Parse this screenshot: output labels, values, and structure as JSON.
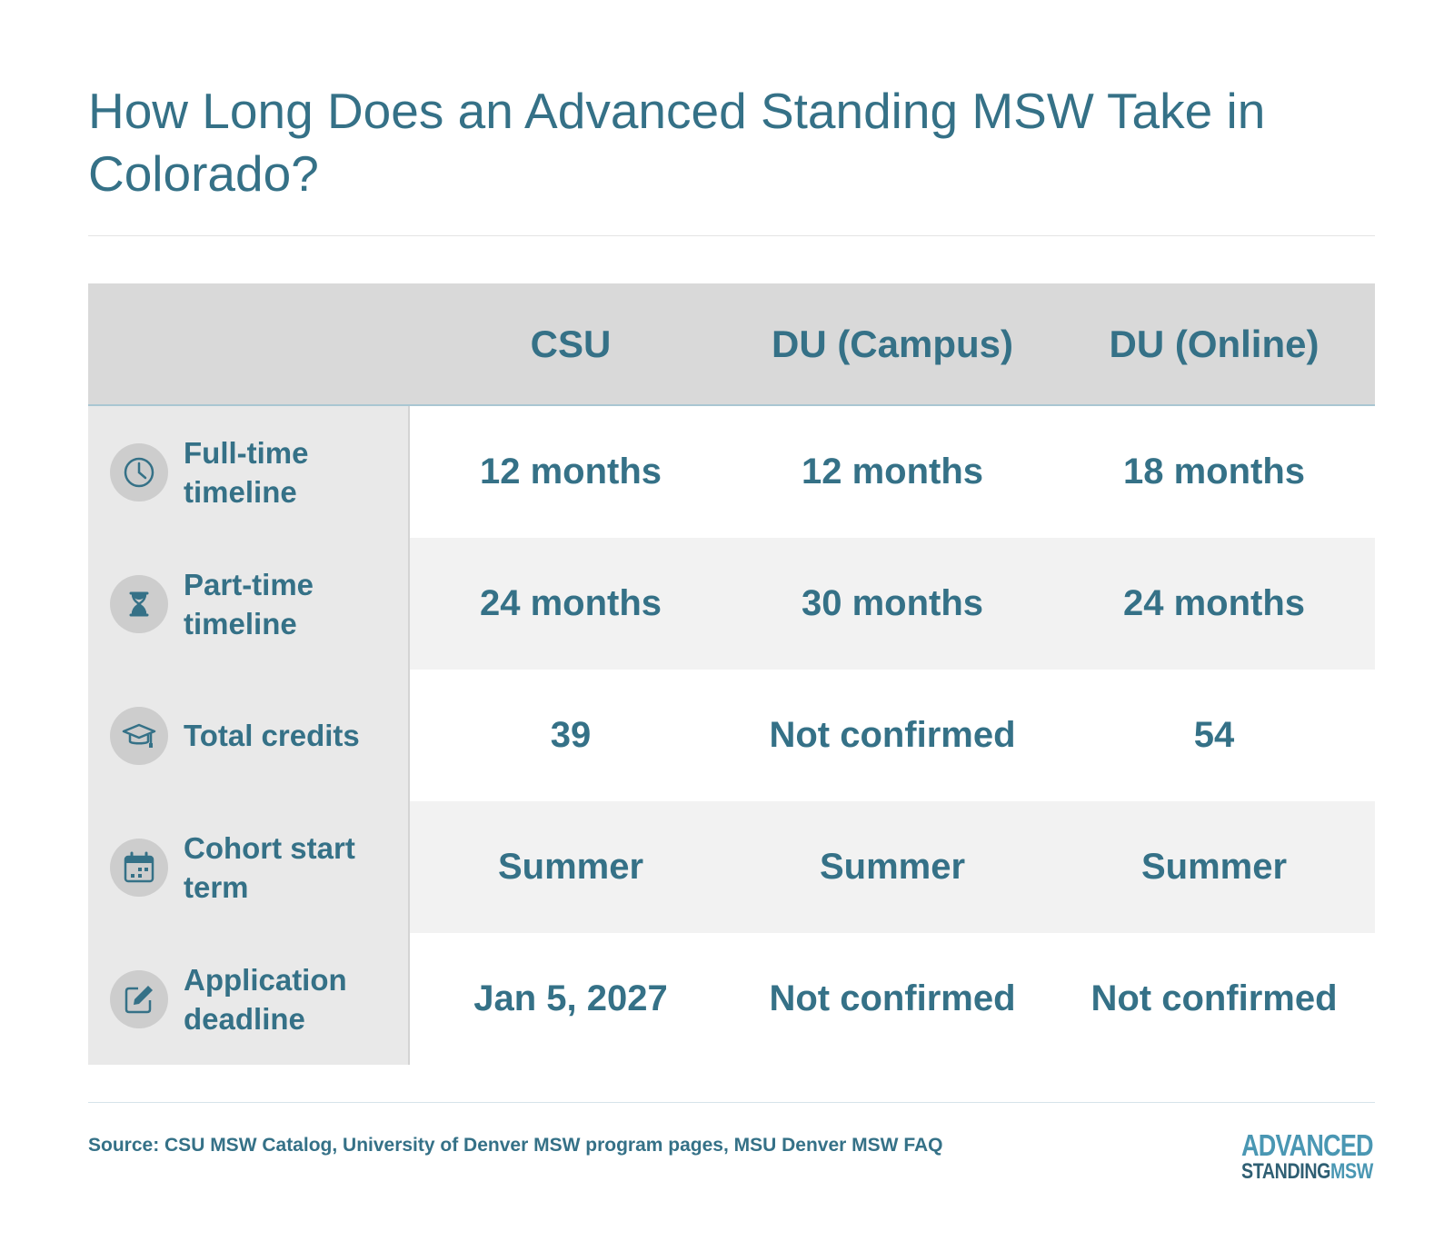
{
  "title": "How Long Does an Advanced Standing MSW Take in Colorado?",
  "columns": [
    "CSU",
    "DU (Campus)",
    "DU (Online)"
  ],
  "rows": [
    {
      "label": "Full-time timeline",
      "icon": "clock-icon",
      "values": [
        "12 months",
        "12 months",
        "18 months"
      ]
    },
    {
      "label": "Part-time timeline",
      "icon": "hourglass-icon",
      "values": [
        "24 months",
        "30 months",
        "24 months"
      ]
    },
    {
      "label": "Total credits",
      "icon": "graduation-cap-icon",
      "values": [
        "39",
        "Not confirmed",
        "54"
      ]
    },
    {
      "label": "Cohort start term",
      "icon": "calendar-icon",
      "values": [
        "Summer",
        "Summer",
        "Summer"
      ]
    },
    {
      "label": "Application deadline",
      "icon": "edit-icon",
      "values": [
        "Jan 5, 2027",
        "Not confirmed",
        "Not confirmed"
      ]
    }
  ],
  "source": "Source: CSU MSW Catalog, University of Denver MSW program pages, MSU Denver MSW FAQ",
  "logo": {
    "line1": "ADVANCED",
    "line2a": "STANDING",
    "line2b": "MSW"
  },
  "colors": {
    "accent": "#357187",
    "header_bg": "#d9d9d9",
    "label_bg": "#e9e9e9",
    "alt_row_bg": "#f2f2f2",
    "logo_blue": "#4a97b3"
  }
}
